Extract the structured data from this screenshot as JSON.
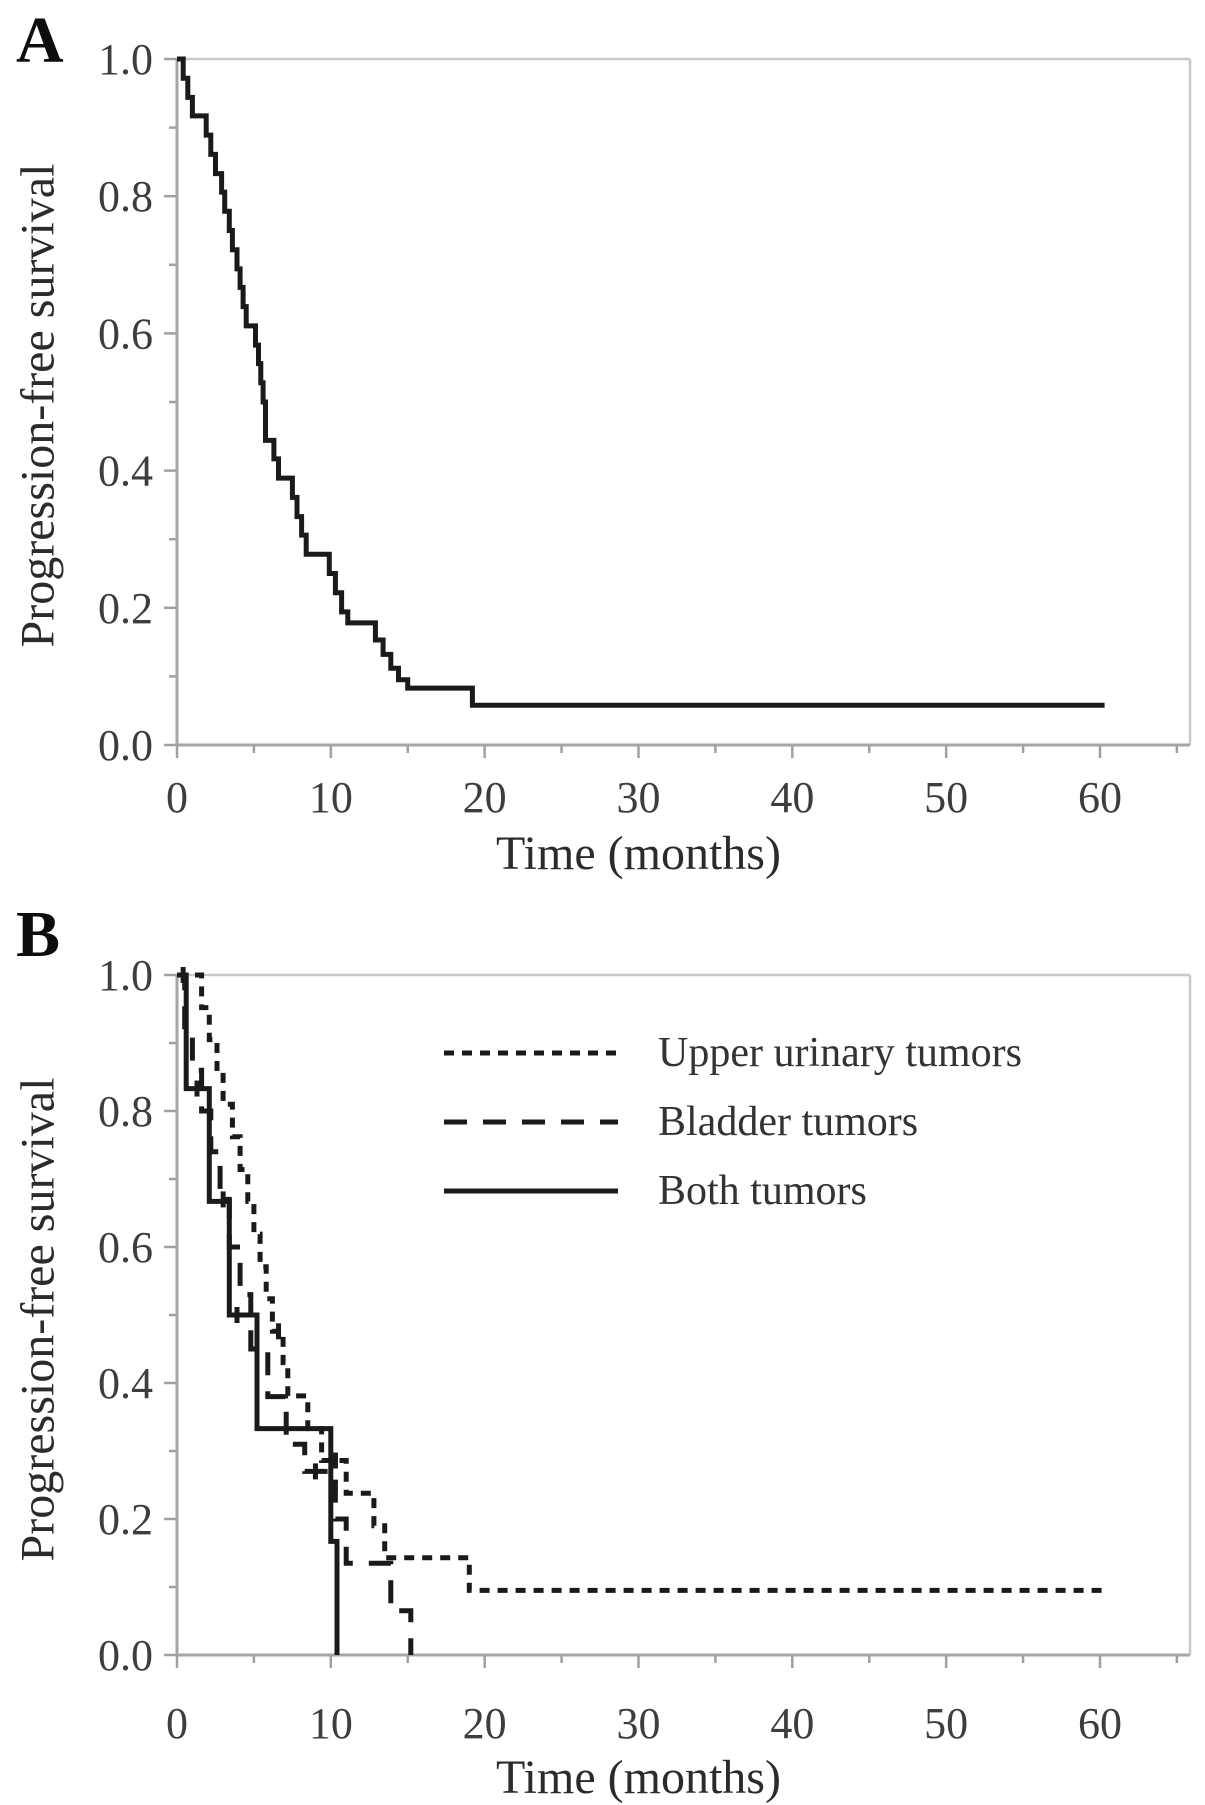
{
  "chart_data": {
    "type": "line",
    "subtype": "kaplan-meier-step",
    "colors": {
      "curve": "#1a1a1a",
      "axis": "#a6a6a6",
      "frame": "#c8c8c8",
      "tick_text": "#3d3d3d",
      "label_text": "#2b2b2b"
    },
    "panels": [
      {
        "panel_label": "A",
        "ylabel": "Progression-free survival",
        "xlabel": "Time (months)",
        "xlim": [
          0,
          65
        ],
        "ylim": [
          0.0,
          1.0
        ],
        "x_ticks": [
          {
            "v": 0,
            "label": "0"
          },
          {
            "v": 10,
            "label": "10"
          },
          {
            "v": 20,
            "label": "20"
          },
          {
            "v": 30,
            "label": "30"
          },
          {
            "v": 40,
            "label": "40"
          },
          {
            "v": 50,
            "label": "50"
          },
          {
            "v": 60,
            "label": "60"
          }
        ],
        "x_minor": [
          5,
          15,
          25,
          35,
          45,
          55,
          65
        ],
        "y_ticks": [
          {
            "v": 1.0,
            "label": "1.0"
          },
          {
            "v": 0.8,
            "label": "0.8"
          },
          {
            "v": 0.6,
            "label": "0.6"
          },
          {
            "v": 0.4,
            "label": "0.4"
          },
          {
            "v": 0.2,
            "label": "0.2"
          },
          {
            "v": 0.0,
            "label": "0.0"
          }
        ],
        "y_minor": [
          0.9,
          0.7,
          0.5,
          0.3,
          0.1
        ],
        "legend": null,
        "series": [
          {
            "style": "solid",
            "steps": [
              [
                0,
                1.0
              ],
              [
                0.4,
                0.972
              ],
              [
                0.7,
                0.944
              ],
              [
                1.0,
                0.917
              ],
              [
                1.9,
                0.889
              ],
              [
                2.2,
                0.861
              ],
              [
                2.5,
                0.833
              ],
              [
                2.9,
                0.806
              ],
              [
                3.1,
                0.778
              ],
              [
                3.4,
                0.75
              ],
              [
                3.6,
                0.722
              ],
              [
                3.9,
                0.694
              ],
              [
                4.1,
                0.667
              ],
              [
                4.3,
                0.639
              ],
              [
                4.5,
                0.611
              ],
              [
                5.1,
                0.583
              ],
              [
                5.3,
                0.556
              ],
              [
                5.45,
                0.528
              ],
              [
                5.6,
                0.5
              ],
              [
                5.75,
                0.444
              ],
              [
                6.3,
                0.417
              ],
              [
                6.6,
                0.389
              ],
              [
                7.5,
                0.361
              ],
              [
                7.8,
                0.333
              ],
              [
                8.1,
                0.306
              ],
              [
                8.4,
                0.278
              ],
              [
                9.9,
                0.25
              ],
              [
                10.3,
                0.222
              ],
              [
                10.7,
                0.194
              ],
              [
                11.1,
                0.178
              ],
              [
                12.9,
                0.153
              ],
              [
                13.4,
                0.132
              ],
              [
                13.9,
                0.112
              ],
              [
                14.4,
                0.095
              ],
              [
                15.0,
                0.083
              ],
              [
                19.2,
                0.058
              ],
              [
                60.3,
                0.058
              ]
            ],
            "censor_marks": []
          }
        ]
      },
      {
        "panel_label": "B",
        "ylabel": "Progression-free survival",
        "xlabel": "Time (months)",
        "xlim": [
          0,
          65
        ],
        "ylim": [
          0.0,
          1.0
        ],
        "x_ticks": [
          {
            "v": 0,
            "label": "0"
          },
          {
            "v": 10,
            "label": "10"
          },
          {
            "v": 20,
            "label": "20"
          },
          {
            "v": 30,
            "label": "30"
          },
          {
            "v": 40,
            "label": "40"
          },
          {
            "v": 50,
            "label": "50"
          },
          {
            "v": 60,
            "label": "60"
          }
        ],
        "x_minor": [
          5,
          15,
          25,
          35,
          45,
          55,
          65
        ],
        "y_ticks": [
          {
            "v": 1.0,
            "label": "1.0"
          },
          {
            "v": 0.8,
            "label": "0.8"
          },
          {
            "v": 0.6,
            "label": "0.6"
          },
          {
            "v": 0.4,
            "label": "0.4"
          },
          {
            "v": 0.2,
            "label": "0.2"
          },
          {
            "v": 0.0,
            "label": "0.0"
          }
        ],
        "y_minor": [
          0.9,
          0.7,
          0.5,
          0.3,
          0.1
        ],
        "legend": {
          "position": "upper-right-inside"
        },
        "series": [
          {
            "name": "Upper urinary tumors",
            "style": "fine-dash",
            "steps": [
              [
                0,
                1.0
              ],
              [
                1.6,
                0.952
              ],
              [
                2.1,
                0.905
              ],
              [
                2.6,
                0.857
              ],
              [
                3.0,
                0.81
              ],
              [
                3.6,
                0.762
              ],
              [
                4.1,
                0.714
              ],
              [
                4.6,
                0.667
              ],
              [
                5.0,
                0.619
              ],
              [
                5.4,
                0.571
              ],
              [
                5.8,
                0.524
              ],
              [
                6.2,
                0.476
              ],
              [
                6.9,
                0.43
              ],
              [
                7.2,
                0.381
              ],
              [
                8.5,
                0.333
              ],
              [
                9.4,
                0.286
              ],
              [
                11.0,
                0.238
              ],
              [
                12.8,
                0.19
              ],
              [
                13.5,
                0.143
              ],
              [
                19.0,
                0.095
              ],
              [
                60.5,
                0.095
              ]
            ],
            "censor_marks": [
              [
                0.4,
                1.0
              ],
              [
                6.6,
                0.476
              ],
              [
                10.3,
                0.286
              ]
            ]
          },
          {
            "name": "Bladder tumors",
            "style": "long-dash",
            "steps": [
              [
                0,
                1.0
              ],
              [
                0.5,
                0.92
              ],
              [
                1.0,
                0.86
              ],
              [
                1.6,
                0.8
              ],
              [
                2.2,
                0.74
              ],
              [
                2.8,
                0.67
              ],
              [
                3.4,
                0.6
              ],
              [
                4.1,
                0.53
              ],
              [
                4.8,
                0.45
              ],
              [
                5.9,
                0.38
              ],
              [
                7.1,
                0.31
              ],
              [
                8.3,
                0.27
              ],
              [
                10.3,
                0.2
              ],
              [
                11.0,
                0.135
              ],
              [
                13.9,
                0.065
              ],
              [
                15.2,
                0.0
              ]
            ],
            "censor_marks": [
              [
                3.0,
                0.67
              ],
              [
                9.0,
                0.27
              ]
            ]
          },
          {
            "name": "Both tumors",
            "style": "solid",
            "steps": [
              [
                0,
                1.0
              ],
              [
                0.6,
                0.833
              ],
              [
                2.1,
                0.667
              ],
              [
                3.4,
                0.5
              ],
              [
                5.2,
                0.333
              ],
              [
                10.0,
                0.167
              ],
              [
                10.4,
                0.0
              ]
            ],
            "censor_marks": [
              [
                1.3,
                0.833
              ],
              [
                3.9,
                0.5
              ]
            ]
          }
        ]
      }
    ]
  }
}
